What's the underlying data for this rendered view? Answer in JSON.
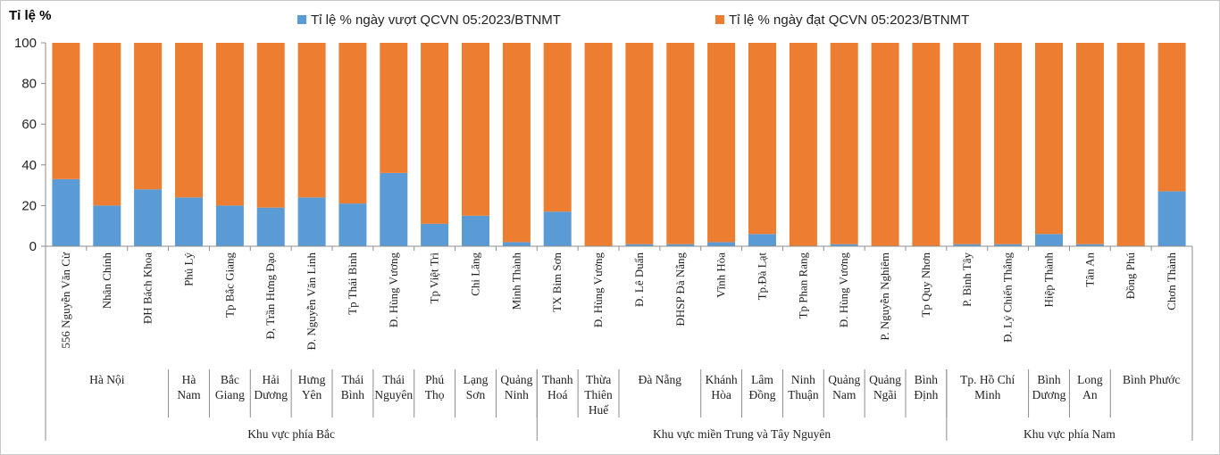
{
  "chart_data": {
    "type": "bar",
    "stacked": true,
    "ylabel": "Tỉ lệ %",
    "ylim": [
      0,
      100
    ],
    "yticks": [
      0,
      20,
      40,
      60,
      80,
      100
    ],
    "grid": false,
    "legend_position": "top",
    "categories": [
      "556 Nguyễn Văn Cừ",
      "Nhân Chính",
      "ĐH Bách Khoa",
      "Phủ Lý",
      "Tp Bắc Giang",
      "Đ, Trần Hưng Đạo",
      "Đ. Nguyễn Văn Linh",
      "Tp Thái Bình",
      "Đ. Hùng Vương",
      "Tp Việt Trì",
      "Chi Lăng",
      "Minh Thành",
      "TX Bỉm Sơn",
      "Đ. Hùng Vương",
      "Đ. Lê Duẩn",
      "ĐHSP Đà Nẵng",
      "Vĩnh Hòa",
      "Tp.Đà Lạt",
      "Tp Phan Rang",
      "Đ. Hùng Vương",
      "P. Nguyễn Nghiêm",
      "Tp Quy Nhơn",
      "P. Bình Tây",
      "Đ. Lý Chiến Thắng",
      "Hiệp Thành",
      "Tân An",
      "Đồng Phú",
      "Chơn Thành"
    ],
    "series": [
      {
        "name": "Tỉ lệ % ngày vượt QCVN 05:2023/BTNMT",
        "color": "#5b9bd5",
        "values": [
          33,
          20,
          28,
          24,
          20,
          19,
          24,
          21,
          36,
          11,
          15,
          2,
          17,
          0,
          1,
          1,
          2,
          6,
          0,
          1,
          0,
          0,
          1,
          1,
          6,
          1,
          0,
          27
        ]
      },
      {
        "name": "Tỉ lệ % ngày đạt QCVN 05:2023/BTNMT",
        "color": "#ed7d31",
        "values": [
          67,
          80,
          72,
          76,
          80,
          81,
          76,
          79,
          64,
          89,
          85,
          98,
          83,
          100,
          99,
          99,
          98,
          94,
          100,
          99,
          100,
          100,
          99,
          99,
          94,
          99,
          100,
          73
        ]
      }
    ],
    "provinces": [
      {
        "name": "Hà Nội",
        "start": 0,
        "end": 2
      },
      {
        "name": "Hà Nam",
        "start": 3,
        "end": 3
      },
      {
        "name": "Bắc Giang",
        "start": 4,
        "end": 4
      },
      {
        "name": "Hải Dương",
        "start": 5,
        "end": 5
      },
      {
        "name": "Hưng Yên",
        "start": 6,
        "end": 6
      },
      {
        "name": "Thái Bình",
        "start": 7,
        "end": 7
      },
      {
        "name": "Thái Nguyên",
        "start": 8,
        "end": 8
      },
      {
        "name": "Phú Thọ",
        "start": 9,
        "end": 9
      },
      {
        "name": "Lạng Sơn",
        "start": 10,
        "end": 10
      },
      {
        "name": "Quảng Ninh",
        "start": 11,
        "end": 11
      },
      {
        "name": "Thanh Hoá",
        "start": 12,
        "end": 12
      },
      {
        "name": "Thừa Thiên Huế",
        "start": 13,
        "end": 13
      },
      {
        "name": "Đà Nẵng",
        "start": 14,
        "end": 15
      },
      {
        "name": "Khánh Hòa",
        "start": 16,
        "end": 16
      },
      {
        "name": "Lâm Đồng",
        "start": 17,
        "end": 17
      },
      {
        "name": "Ninh Thuận",
        "start": 18,
        "end": 18
      },
      {
        "name": "Quảng Nam",
        "start": 19,
        "end": 19
      },
      {
        "name": "Quảng Ngãi",
        "start": 20,
        "end": 20
      },
      {
        "name": "Bình Định",
        "start": 21,
        "end": 21
      },
      {
        "name": "Tp. Hồ Chí Minh",
        "start": 22,
        "end": 23
      },
      {
        "name": "Bình Dương",
        "start": 24,
        "end": 24
      },
      {
        "name": "Long An",
        "start": 25,
        "end": 25
      },
      {
        "name": "Bình Phước",
        "start": 26,
        "end": 27
      }
    ],
    "regions": [
      {
        "name": "Khu vực phía Bắc",
        "start": 0,
        "end": 11
      },
      {
        "name": "Khu vực miền Trung và Tây Nguyên",
        "start": 12,
        "end": 21
      },
      {
        "name": "Khu vực phía Nam",
        "start": 22,
        "end": 27
      }
    ]
  }
}
